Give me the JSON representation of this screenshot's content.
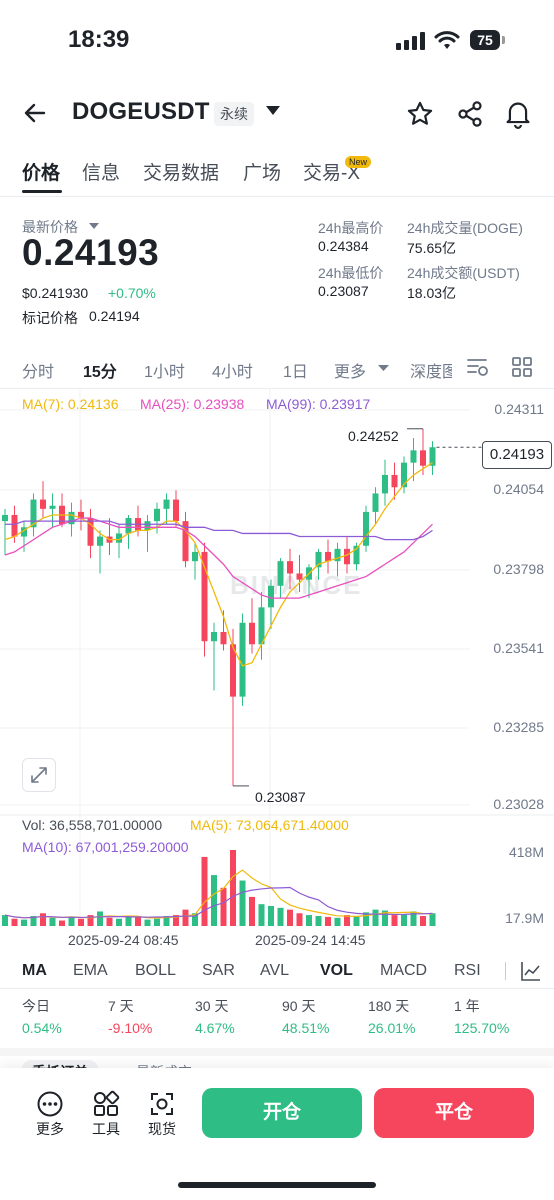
{
  "status_bar": {
    "time": "18:39",
    "battery": "75"
  },
  "header": {
    "pair": "DOGEUSDT",
    "contract_type": "永续"
  },
  "tabs": [
    {
      "label": "价格"
    },
    {
      "label": "信息"
    },
    {
      "label": "交易数据"
    },
    {
      "label": "广场"
    },
    {
      "label": "交易-X"
    }
  ],
  "new_badge": "New",
  "price": {
    "latest_label": "最新价格",
    "last": "0.24193",
    "usd": "$0.241930",
    "change": "+0.70%",
    "mark_label": "标记价格",
    "mark_value": "0.24194"
  },
  "stats": {
    "high_label": "24h最高价",
    "high": "0.24384",
    "low_label": "24h最低价",
    "low": "0.23087",
    "vol_doge_label": "24h成交量(DOGE)",
    "vol_doge": "75.65亿",
    "vol_usdt_label": "24h成交额(USDT)",
    "vol_usdt": "18.03亿"
  },
  "intervals": [
    "分时",
    "15分",
    "1小时",
    "4小时",
    "1日",
    "更多",
    "深度图"
  ],
  "ma_legend": {
    "ma7": "MA(7): 0.24136",
    "ma25": "MA(25): 0.23938",
    "ma99": "MA(99): 0.23917"
  },
  "price_axis": [
    "0.24311",
    "0.24054",
    "0.23798",
    "0.23541",
    "0.23285",
    "0.23028"
  ],
  "current_price_box": "0.24193",
  "annotations": {
    "high": "0.24252",
    "low": "0.23087"
  },
  "watermark": "BINANCE",
  "volume": {
    "vol": "Vol: 36,558,701.00000",
    "ma5": "MA(5): 73,064,671.40000",
    "ma10": "MA(10): 67,001,259.20000",
    "axis_top": "418M",
    "axis_bottom": "17.9M"
  },
  "time_axis": [
    "2025-09-24 08:45",
    "2025-09-24 14:45"
  ],
  "indicators": [
    "MA",
    "EMA",
    "BOLL",
    "SAR",
    "AVL",
    "VOL",
    "MACD",
    "RSI"
  ],
  "performance": [
    {
      "label": "今日",
      "value": "0.54%",
      "dir": "up"
    },
    {
      "label": "7 天",
      "value": "-9.10%",
      "dir": "down"
    },
    {
      "label": "30 天",
      "value": "4.67%",
      "dir": "up"
    },
    {
      "label": "90 天",
      "value": "48.51%",
      "dir": "up"
    },
    {
      "label": "180 天",
      "value": "26.01%",
      "dir": "up"
    },
    {
      "label": "1 年",
      "value": "125.70%",
      "dir": "up"
    }
  ],
  "bottom": {
    "more": "更多",
    "tools": "工具",
    "spot": "现货",
    "open": "开仓",
    "close": "平仓",
    "peek_tabs": [
      "委托订单",
      "最新成交"
    ]
  },
  "colors": {
    "up": "#2ebd85",
    "down": "#f6465d",
    "ma7": "#f0b90b",
    "ma25": "#e84fc0",
    "ma99": "#8e5bd6"
  },
  "chart_data": {
    "type": "candlestick",
    "ohlc": [
      [
        0.2395,
        0.2399,
        0.2384,
        0.2397
      ],
      [
        0.2397,
        0.24,
        0.2388,
        0.239
      ],
      [
        0.239,
        0.2395,
        0.2385,
        0.2393
      ],
      [
        0.2393,
        0.2404,
        0.239,
        0.2402
      ],
      [
        0.2402,
        0.2408,
        0.2396,
        0.2399
      ],
      [
        0.2399,
        0.2404,
        0.2393,
        0.24
      ],
      [
        0.24,
        0.2404,
        0.2393,
        0.2394
      ],
      [
        0.2394,
        0.2401,
        0.239,
        0.2398
      ],
      [
        0.2398,
        0.2402,
        0.2392,
        0.2396
      ],
      [
        0.2396,
        0.2399,
        0.2383,
        0.2387
      ],
      [
        0.2387,
        0.2392,
        0.2378,
        0.239
      ],
      [
        0.239,
        0.2396,
        0.2384,
        0.2388
      ],
      [
        0.2388,
        0.2394,
        0.2383,
        0.2391
      ],
      [
        0.2391,
        0.2397,
        0.2386,
        0.2396
      ],
      [
        0.2396,
        0.24,
        0.239,
        0.2392
      ],
      [
        0.2392,
        0.2397,
        0.2385,
        0.2395
      ],
      [
        0.2395,
        0.2401,
        0.2391,
        0.2399
      ],
      [
        0.2399,
        0.2404,
        0.2394,
        0.2402
      ],
      [
        0.2402,
        0.2405,
        0.2393,
        0.2395
      ],
      [
        0.2395,
        0.2398,
        0.238,
        0.2382
      ],
      [
        0.2382,
        0.2388,
        0.2376,
        0.2385
      ],
      [
        0.2385,
        0.2388,
        0.2351,
        0.2356
      ],
      [
        0.2356,
        0.2362,
        0.234,
        0.2359
      ],
      [
        0.2359,
        0.2366,
        0.2353,
        0.2355
      ],
      [
        0.2355,
        0.236,
        0.2309,
        0.2338
      ],
      [
        0.2338,
        0.2365,
        0.2335,
        0.2362
      ],
      [
        0.2362,
        0.237,
        0.2352,
        0.2355
      ],
      [
        0.2355,
        0.2372,
        0.235,
        0.2367
      ],
      [
        0.2367,
        0.2376,
        0.236,
        0.2374
      ],
      [
        0.2374,
        0.2383,
        0.237,
        0.2382
      ],
      [
        0.2382,
        0.2386,
        0.2373,
        0.2378
      ],
      [
        0.2378,
        0.2384,
        0.2372,
        0.2376
      ],
      [
        0.2376,
        0.2381,
        0.237,
        0.238
      ],
      [
        0.238,
        0.2386,
        0.2376,
        0.2385
      ],
      [
        0.2385,
        0.2389,
        0.2378,
        0.2382
      ],
      [
        0.2382,
        0.2388,
        0.2377,
        0.2386
      ],
      [
        0.2386,
        0.239,
        0.2378,
        0.2381
      ],
      [
        0.2381,
        0.2388,
        0.2379,
        0.2387
      ],
      [
        0.2387,
        0.24,
        0.2385,
        0.2398
      ],
      [
        0.2398,
        0.2406,
        0.2394,
        0.2404
      ],
      [
        0.2404,
        0.2415,
        0.24,
        0.241
      ],
      [
        0.241,
        0.2414,
        0.2402,
        0.2406
      ],
      [
        0.2406,
        0.2416,
        0.2404,
        0.2414
      ],
      [
        0.2414,
        0.2422,
        0.2408,
        0.2418
      ],
      [
        0.2418,
        0.2425,
        0.241,
        0.2413
      ],
      [
        0.2413,
        0.2421,
        0.241,
        0.2419
      ]
    ],
    "volume_M": [
      60,
      40,
      35,
      55,
      70,
      45,
      30,
      50,
      40,
      60,
      80,
      45,
      40,
      50,
      55,
      35,
      40,
      55,
      60,
      90,
      70,
      380,
      280,
      210,
      418,
      250,
      160,
      120,
      110,
      100,
      90,
      70,
      60,
      55,
      50,
      45,
      60,
      55,
      75,
      90,
      85,
      60,
      65,
      80,
      55,
      70
    ],
    "ma7": [
      0.2389,
      0.239,
      0.2392,
      0.2394,
      0.2396,
      0.2397,
      0.2397,
      0.2397,
      0.2396,
      0.2394,
      0.2391,
      0.2389,
      0.2389,
      0.2391,
      0.2392,
      0.2392,
      0.2393,
      0.2395,
      0.2395,
      0.2392,
      0.2388,
      0.238,
      0.2372,
      0.2364,
      0.2354,
      0.2348,
      0.2349,
      0.2355,
      0.2361,
      0.2367,
      0.2372,
      0.2375,
      0.2378,
      0.2381,
      0.2382,
      0.2383,
      0.2384,
      0.2386,
      0.239,
      0.2394,
      0.2399,
      0.2403,
      0.2407,
      0.241,
      0.2412,
      0.2414
    ],
    "ma25": [
      0.2384,
      0.2385,
      0.2387,
      0.2389,
      0.2391,
      0.2393,
      0.2394,
      0.2395,
      0.2396,
      0.2396,
      0.2395,
      0.2394,
      0.2393,
      0.2393,
      0.2393,
      0.2393,
      0.2393,
      0.2393,
      0.2393,
      0.2392,
      0.239,
      0.2387,
      0.2384,
      0.2381,
      0.2377,
      0.2375,
      0.2373,
      0.2371,
      0.237,
      0.237,
      0.237,
      0.237,
      0.2371,
      0.2372,
      0.2373,
      0.2374,
      0.2375,
      0.2376,
      0.2377,
      0.2379,
      0.2381,
      0.2383,
      0.2385,
      0.2388,
      0.2391,
      0.2394
    ],
    "ma99": [
      0.2394,
      0.2394,
      0.2395,
      0.2395,
      0.2395,
      0.2395,
      0.2395,
      0.2395,
      0.2395,
      0.2395,
      0.2395,
      0.2395,
      0.2394,
      0.2394,
      0.2394,
      0.2394,
      0.2394,
      0.2394,
      0.2394,
      0.2393,
      0.2393,
      0.2393,
      0.2392,
      0.2392,
      0.2392,
      0.2391,
      0.2391,
      0.2391,
      0.2391,
      0.2391,
      0.2391,
      0.239,
      0.239,
      0.239,
      0.239,
      0.239,
      0.239,
      0.239,
      0.239,
      0.239,
      0.2389,
      0.2389,
      0.2389,
      0.2389,
      0.239,
      0.2392
    ],
    "y_range": [
      0.23028,
      0.24311
    ],
    "volume_range_M": [
      17.9,
      418
    ]
  }
}
